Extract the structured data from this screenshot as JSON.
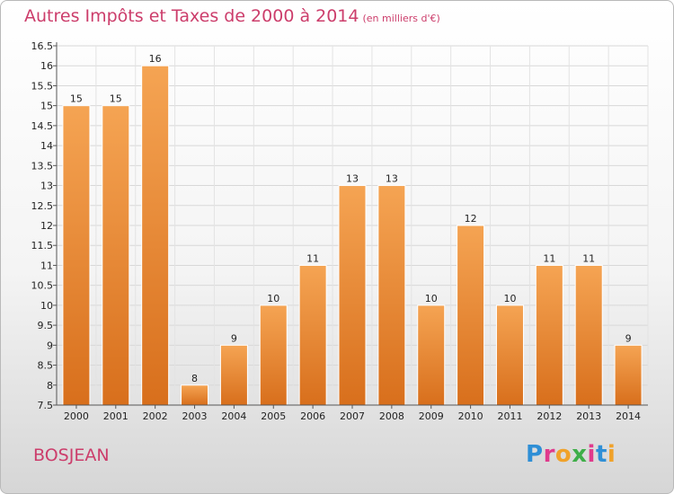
{
  "title": "Autres Impôts et Taxes de 2000 à 2014",
  "title_unit": "(en milliers d'€)",
  "place": "BOSJEAN",
  "brand": {
    "letters": [
      "P",
      "r",
      "o",
      "x",
      "i",
      "t",
      "i"
    ],
    "colors": [
      "#2f8fd6",
      "#e03a8c",
      "#f0a22a",
      "#3fae49",
      "#e03a8c",
      "#2f8fd6",
      "#f0a22a"
    ]
  },
  "chart_data": {
    "type": "bar",
    "title": "Autres Impôts et Taxes de 2000 à 2014",
    "categories": [
      "2000",
      "2001",
      "2002",
      "2003",
      "2004",
      "2005",
      "2006",
      "2007",
      "2008",
      "2009",
      "2010",
      "2011",
      "2012",
      "2013",
      "2014"
    ],
    "values": [
      15,
      15,
      16,
      8,
      9,
      10,
      11,
      13,
      13,
      10,
      12,
      10,
      11,
      11,
      9
    ],
    "data_labels": [
      "15",
      "15",
      "16",
      "8",
      "9",
      "10",
      "11",
      "13",
      "13",
      "10",
      "12",
      "10",
      "11",
      "11",
      "9"
    ],
    "ylim": [
      7.5,
      16.5
    ],
    "yticks": [
      "7.5",
      "8",
      "8.5",
      "9",
      "9.5",
      "10",
      "10.5",
      "11",
      "11.5",
      "12",
      "12.5",
      "13",
      "13.5",
      "14",
      "14.5",
      "15",
      "15.5",
      "16",
      "16.5"
    ],
    "ytick_values": [
      7.5,
      8,
      8.5,
      9,
      9.5,
      10,
      10.5,
      11,
      11.5,
      12,
      12.5,
      13,
      13.5,
      14,
      14.5,
      15,
      15.5,
      16,
      16.5
    ],
    "bar_color": "#f0963c",
    "bar_color_dark": "#d8701c",
    "grid": true,
    "legend": false
  }
}
